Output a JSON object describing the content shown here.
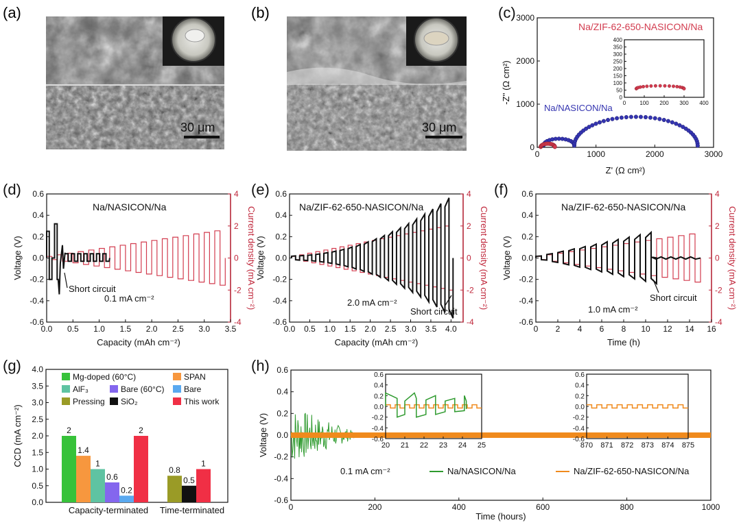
{
  "colors": {
    "black": "#111111",
    "red_trace": "#d23b4e",
    "red_dark_axis": "#c0283c",
    "blue_trace": "#3434b0",
    "green_trace": "#2e9a2e",
    "orange_trace": "#f08a1c",
    "bar_green": "#37c23a",
    "bar_orange": "#f7973e",
    "bar_teal": "#5fc3a2",
    "bar_purple": "#8466ee",
    "bar_blue": "#5aa9f0",
    "bar_olive": "#9a9b26",
    "bar_black": "#111111",
    "bar_red": "#f02f45"
  },
  "panels": {
    "a": {
      "label": "(a)",
      "scale_bar": "30 μm"
    },
    "b": {
      "label": "(b)",
      "scale_bar": "30 μm"
    }
  },
  "chart_data": [
    {
      "id": "c",
      "type": "scatter",
      "panel_label": "(c)",
      "xlabel": "Z' (Ω cm²)",
      "ylabel": "-Z'' (Ω cm²)",
      "xlim": [
        0,
        3000
      ],
      "ylim": [
        0,
        3000
      ],
      "xticks": [
        "0",
        "1000",
        "2000",
        "3000"
      ],
      "yticks": [
        "0",
        "1000",
        "2000",
        "3000"
      ],
      "series": [
        {
          "name": "Na/NASICON/Na",
          "color": "#3434b0",
          "description": "two semicircles; small arc ~100-600, large arc peak ~680 at 1600, ends 2730"
        },
        {
          "name": "Na/ZIF-62-650-NASICON/Na",
          "color": "#d23b4e",
          "description": "single semicircle from ~60 to ~300, peak ~75"
        }
      ],
      "inset": {
        "xlim": [
          0,
          400
        ],
        "ylim": [
          0,
          400
        ],
        "xticks": [
          "0",
          "100",
          "200",
          "300",
          "400"
        ],
        "yticks": [
          "0",
          "50",
          "100",
          "150",
          "200",
          "250",
          "300",
          "350",
          "400"
        ]
      }
    },
    {
      "id": "d",
      "type": "line",
      "panel_label": "(d)",
      "title": "Na/NASICON/Na",
      "annotation": "Short circuit",
      "current_text": "0.1 mA cm⁻²",
      "xlabel": "Capacity (mAh cm⁻²)",
      "ylabel": "Voltage (V)",
      "y2label": "Current density (mA cm⁻²)",
      "xlim": [
        0,
        3.5
      ],
      "ylim": [
        -0.6,
        0.6
      ],
      "y2lim": [
        -4,
        4
      ],
      "xticks": [
        "0.0",
        "0.5",
        "1.0",
        "1.5",
        "2.0",
        "2.5",
        "3.0",
        "3.5"
      ],
      "yticks": [
        "-0.6",
        "-0.4",
        "-0.2",
        "0.0",
        "0.2",
        "0.4",
        "0.6"
      ],
      "y2ticks": [
        "-4",
        "-2",
        "0",
        "2",
        "4"
      ],
      "series": [
        {
          "name": "Voltage",
          "color": "#111111",
          "description": "polarization up to ~0.3 V, short circuit at ~0.3 mAh cm⁻², then flat near 0"
        },
        {
          "name": "Current density",
          "color": "#d23b4e",
          "description": "square wave, amplitude increasing from 0.1 to ~1.7 mA cm⁻² by 3.4 mAh cm⁻²"
        }
      ]
    },
    {
      "id": "e",
      "type": "line",
      "panel_label": "(e)",
      "title": "Na/ZIF-62-650-NASICON/Na",
      "annotation": "Short circuit",
      "current_text": "2.0 mA cm⁻²",
      "xlabel": "Capacity (mAh cm⁻²)",
      "ylabel": "Voltage (V)",
      "y2label": "Current density (mA cm⁻²)",
      "xlim": [
        0,
        4.3
      ],
      "ylim": [
        -0.6,
        0.6
      ],
      "y2lim": [
        -4,
        4
      ],
      "xticks": [
        "0.0",
        "0.5",
        "1.0",
        "1.5",
        "2.0",
        "2.5",
        "3.0",
        "3.5",
        "4.0"
      ],
      "yticks": [
        "-0.6",
        "-0.4",
        "-0.2",
        "0.0",
        "0.2",
        "0.4",
        "0.6"
      ],
      "y2ticks": [
        "-4",
        "-2",
        "0",
        "2",
        "4"
      ],
      "series": [
        {
          "name": "Voltage",
          "color": "#111111",
          "description": "polarization grows from 0.02 V to ~0.58 V at 4.1 mAh cm⁻²"
        },
        {
          "name": "Current density",
          "color": "#d23b4e",
          "description": "square wave up to ~2.0 mA cm⁻²"
        }
      ]
    },
    {
      "id": "f",
      "type": "line",
      "panel_label": "(f)",
      "title": "Na/ZIF-62-650-NASICON/Na",
      "annotation": "Short circuit",
      "current_text": "1.0 mA cm⁻²",
      "xlabel": "Time (h)",
      "ylabel": "Voltage (V)",
      "y2label": "Current density (mA cm⁻²)",
      "xlim": [
        0,
        16
      ],
      "ylim": [
        -0.6,
        0.6
      ],
      "y2lim": [
        -4,
        4
      ],
      "xticks": [
        "0",
        "2",
        "4",
        "6",
        "8",
        "10",
        "12",
        "14",
        "16"
      ],
      "yticks": [
        "-0.6",
        "-0.4",
        "-0.2",
        "0.0",
        "0.2",
        "0.4",
        "0.6"
      ],
      "y2ticks": [
        "-4",
        "-2",
        "0",
        "2",
        "4"
      ],
      "series": [
        {
          "name": "Voltage",
          "color": "#111111",
          "description": "increases to ~0.25 V at 10.5 h, then short circuit"
        },
        {
          "name": "Current density",
          "color": "#d23b4e",
          "description": "square wave up to 1.5 mA cm⁻²"
        }
      ]
    },
    {
      "id": "g",
      "type": "bar",
      "panel_label": "(g)",
      "ylabel": "CCD (mA cm⁻²)",
      "ylim": [
        0,
        4
      ],
      "yticks": [
        "0.0",
        "0.5",
        "1.0",
        "1.5",
        "2.0",
        "2.5",
        "3.0",
        "3.5",
        "4.0"
      ],
      "groups": [
        "Capacity-terminated",
        "Time-terminated"
      ],
      "bars": [
        {
          "name": "Mg-doped (60°C)",
          "group": 0,
          "value": 2,
          "label": "2",
          "color": "#37c23a"
        },
        {
          "name": "SPAN",
          "group": 0,
          "value": 1.4,
          "label": "1.4",
          "color": "#f7973e"
        },
        {
          "name": "AlF₃",
          "group": 0,
          "value": 1,
          "label": "1",
          "color": "#5fc3a2"
        },
        {
          "name": "Bare (60°C)",
          "group": 0,
          "value": 0.6,
          "label": "0.6",
          "color": "#8466ee"
        },
        {
          "name": "Bare",
          "group": 0,
          "value": 0.2,
          "label": "0.2",
          "color": "#5aa9f0"
        },
        {
          "name": "This work",
          "group": 0,
          "value": 2,
          "label": "2",
          "color": "#f02f45"
        },
        {
          "name": "Pressing",
          "group": 1,
          "value": 0.8,
          "label": "0.8",
          "color": "#9a9b26"
        },
        {
          "name": "SiO₂",
          "group": 1,
          "value": 0.5,
          "label": "0.5",
          "color": "#111111"
        },
        {
          "name": "This work",
          "group": 1,
          "value": 1,
          "label": "1",
          "color": "#f02f45"
        }
      ],
      "legend": [
        {
          "name": "Mg-doped (60°C)",
          "color": "#37c23a"
        },
        {
          "name": "SPAN",
          "color": "#f7973e"
        },
        {
          "name": "AlF₃",
          "color": "#5fc3a2"
        },
        {
          "name": "Bare (60°C)",
          "color": "#8466ee"
        },
        {
          "name": "Bare",
          "color": "#5aa9f0"
        },
        {
          "name": "Pressing",
          "color": "#9a9b26"
        },
        {
          "name": "SiO₂",
          "color": "#111111"
        },
        {
          "name": "This work",
          "color": "#f02f45"
        }
      ]
    },
    {
      "id": "h",
      "type": "line",
      "panel_label": "(h)",
      "current_text": "0.1 mA cm⁻²",
      "xlabel": "Time (hours)",
      "ylabel": "Voltage (V)",
      "xlim": [
        0,
        1000
      ],
      "ylim": [
        -0.6,
        0.6
      ],
      "xticks": [
        "0",
        "200",
        "400",
        "600",
        "800",
        "1000"
      ],
      "yticks": [
        "-0.6",
        "-0.4",
        "-0.2",
        "0.0",
        "0.2",
        "0.4",
        "0.6"
      ],
      "series": [
        {
          "name": "Na/NASICON/Na",
          "color": "#2e9a2e",
          "description": "noisy ±0.25 V decaying, short by ~150 h"
        },
        {
          "name": "Na/ZIF-62-650-NASICON/Na",
          "color": "#f08a1c",
          "description": "stable ±0.02 V band to 1000 h"
        }
      ],
      "inset1": {
        "xlim": [
          20,
          25
        ],
        "ylim": [
          -0.6,
          0.6
        ],
        "xticks": [
          "20",
          "21",
          "22",
          "23",
          "24",
          "25"
        ],
        "yticks": [
          "-0.6",
          "-0.4",
          "-0.2",
          "0.0",
          "0.2",
          "0.4",
          "0.6"
        ]
      },
      "inset2": {
        "xlim": [
          870,
          875
        ],
        "ylim": [
          -0.6,
          0.6
        ],
        "xticks": [
          "870",
          "871",
          "872",
          "873",
          "874",
          "875"
        ],
        "yticks": [
          "-0.6",
          "-0.4",
          "-0.2",
          "0.0",
          "0.2",
          "0.4",
          "0.6"
        ]
      }
    }
  ]
}
